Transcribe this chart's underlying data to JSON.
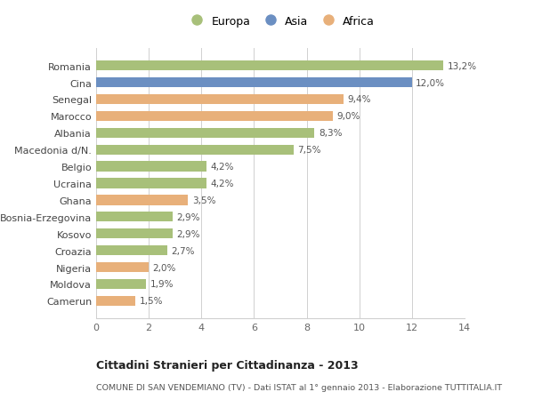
{
  "categories": [
    "Camerun",
    "Moldova",
    "Nigeria",
    "Croazia",
    "Kosovo",
    "Bosnia-Erzegovina",
    "Ghana",
    "Ucraina",
    "Belgio",
    "Macedonia d/N.",
    "Albania",
    "Marocco",
    "Senegal",
    "Cina",
    "Romania"
  ],
  "values": [
    1.5,
    1.9,
    2.0,
    2.7,
    2.9,
    2.9,
    3.5,
    4.2,
    4.2,
    7.5,
    8.3,
    9.0,
    9.4,
    12.0,
    13.2
  ],
  "labels": [
    "1,5%",
    "1,9%",
    "2,0%",
    "2,7%",
    "2,9%",
    "2,9%",
    "3,5%",
    "4,2%",
    "4,2%",
    "7,5%",
    "8,3%",
    "9,0%",
    "9,4%",
    "12,0%",
    "13,2%"
  ],
  "continents": [
    "Africa",
    "Europa",
    "Africa",
    "Europa",
    "Europa",
    "Europa",
    "Africa",
    "Europa",
    "Europa",
    "Europa",
    "Europa",
    "Africa",
    "Africa",
    "Asia",
    "Europa"
  ],
  "colors": {
    "Europa": "#a8c07a",
    "Asia": "#6b8fc2",
    "Africa": "#e8b07a"
  },
  "legend_labels": [
    "Europa",
    "Asia",
    "Africa"
  ],
  "background_color": "#ffffff",
  "title": "Cittadini Stranieri per Cittadinanza - 2013",
  "subtitle": "COMUNE DI SAN VENDEMIANO (TV) - Dati ISTAT al 1° gennaio 2013 - Elaborazione TUTTITALIA.IT",
  "xlim": [
    0,
    14
  ],
  "xticks": [
    0,
    2,
    4,
    6,
    8,
    10,
    12,
    14
  ],
  "grid_color": "#d0d0d0",
  "bar_height": 0.6
}
